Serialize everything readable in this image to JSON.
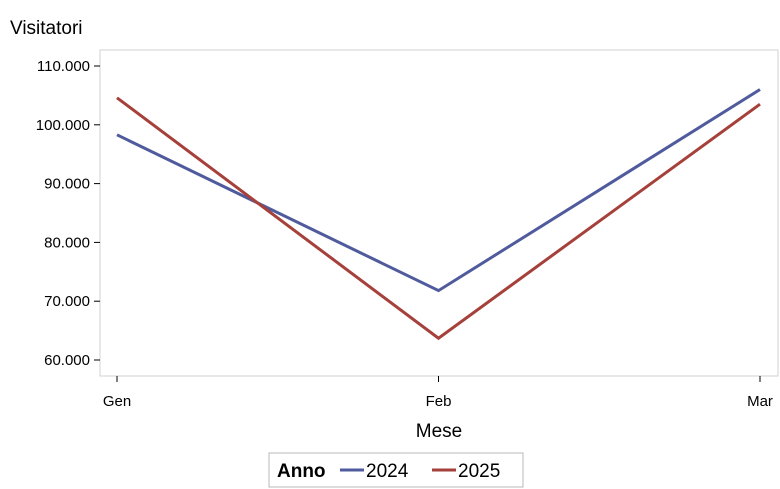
{
  "chart_data": {
    "type": "line",
    "title": "",
    "ylabel": "Visitatori",
    "xlabel": "Mese",
    "categories": [
      "Gen",
      "Feb",
      "Mar"
    ],
    "ylim": [
      58000,
      111000
    ],
    "yticks": [
      60000,
      70000,
      80000,
      90000,
      100000,
      110000
    ],
    "ytick_labels": [
      "60.000",
      "70.000",
      "80.000",
      "90.000",
      "100.000",
      "110.000"
    ],
    "grid": false,
    "legend": {
      "title": "Anno",
      "placement": "bottom-center"
    },
    "series": [
      {
        "name": "2024",
        "values": [
          98300,
          71800,
          106000
        ],
        "color": "#4f5b9c"
      },
      {
        "name": "2025",
        "values": [
          104600,
          63700,
          103500
        ],
        "color": "#a6403a"
      }
    ]
  }
}
